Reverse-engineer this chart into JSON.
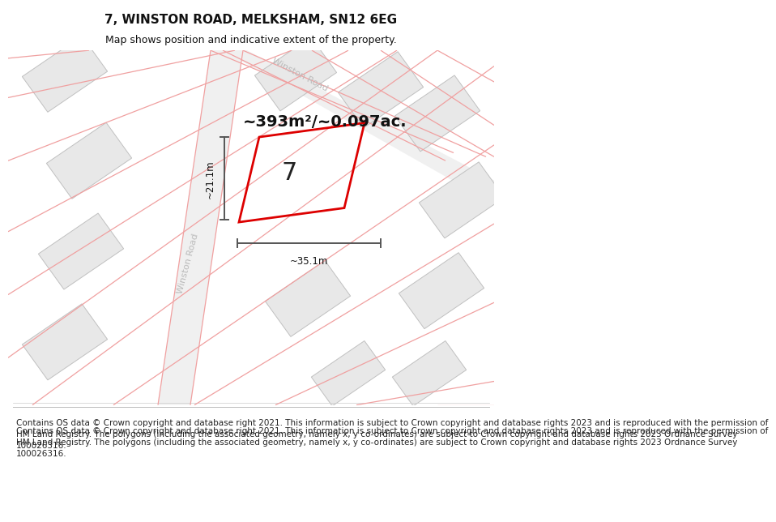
{
  "title": "7, WINSTON ROAD, MELKSHAM, SN12 6EG",
  "subtitle": "Map shows position and indicative extent of the property.",
  "area_text": "~393m²/~0.097ac.",
  "property_number": "7",
  "dim_width": "~35.1m",
  "dim_height": "~21.1m",
  "road_label_left": "Winston Road",
  "road_label_top": "Winston Road",
  "footer": "Contains OS data © Crown copyright and database right 2021. This information is subject to Crown copyright and database rights 2023 and is reproduced with the permission of\nHM Land Registry. The polygons (including the associated geometry, namely x, y co-ordinates) are subject to Crown copyright and database rights 2023 Ordnance Survey\n100026316.",
  "bg_color": "#ffffff",
  "map_bg": "#ffffff",
  "building_fill": "#e8e8e8",
  "building_edge": "#c0c0c0",
  "road_band_fill": "#eeeeee",
  "road_line_color": "#f0a0a0",
  "highlight_color": "#dd0000",
  "dim_color": "#555555",
  "street_label_color": "#c0c0c0",
  "title_fontsize": 11,
  "subtitle_fontsize": 9,
  "footer_fontsize": 7.5
}
